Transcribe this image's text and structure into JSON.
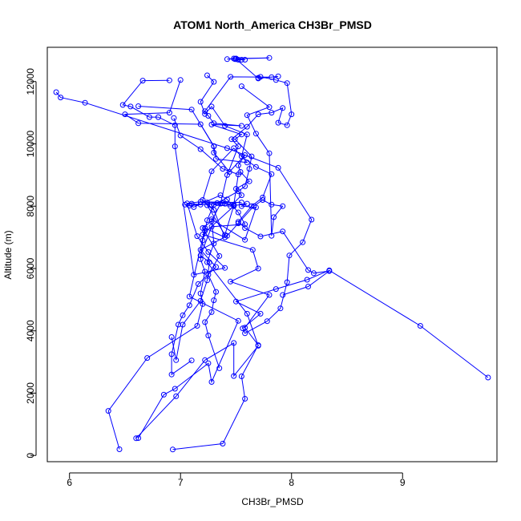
{
  "chart_data": {
    "type": "line",
    "title": "ATOM1 North_America CH3Br_PMSD",
    "xlabel": "CH3Br_PMSD",
    "ylabel": "Altitude (m)",
    "xlim": [
      5.8,
      9.85
    ],
    "ylim": [
      -200,
      13100
    ],
    "xticks": [
      6,
      7,
      8,
      9
    ],
    "xtick_labels": [
      "6",
      "7",
      "8",
      "9"
    ],
    "yticks": [
      0,
      2000,
      4000,
      6000,
      8000,
      10000,
      12000
    ],
    "ytick_labels": [
      "0",
      "2000",
      "4000",
      "6000",
      "8000",
      "10000",
      "12000"
    ],
    "grid": false,
    "legend": "none",
    "color": "#0000ff",
    "series": [
      {
        "x": [
          6.93,
          7.38,
          7.58,
          7.55,
          7.7,
          7.58,
          7.8,
          7.45,
          7.7,
          7.65,
          7.2,
          7.48,
          7.4,
          7.33,
          7.52,
          7.58,
          7.62,
          7.64,
          7.49,
          7.55,
          7.28,
          7.55,
          7.3,
          7.25,
          7.22,
          7.45,
          7.82,
          7.88,
          7.7,
          7.5,
          7.52,
          7.55,
          7.48,
          7.42,
          7.8,
          7.5,
          7.58,
          7.49
        ],
        "y": [
          190,
          380,
          1820,
          2540,
          3540,
          4100,
          5150,
          5580,
          6000,
          6600,
          7090,
          8000,
          8080,
          8100,
          8480,
          8640,
          9200,
          9600,
          10150,
          10300,
          10620,
          10580,
          10660,
          10900,
          11050,
          12150,
          12140,
          12170,
          12100,
          12720,
          12700,
          12700,
          12740,
          12720,
          12760,
          12740,
          12700,
          12720
        ]
      },
      {
        "x": [
          6.45,
          6.35,
          6.7,
          7.15,
          7.2,
          7.18,
          7.22,
          7.18,
          7.2,
          7.22,
          7.24,
          7.3,
          7.45,
          7.55,
          7.5,
          7.62,
          7.54,
          7.52,
          7.58,
          7.44,
          7.3,
          7.3,
          7.18,
          6.62,
          6.5,
          6.9,
          7.0
        ],
        "y": [
          200,
          1430,
          3130,
          4160,
          4860,
          5200,
          5900,
          6300,
          6900,
          7210,
          7550,
          8050,
          8000,
          8350,
          8560,
          8800,
          9100,
          9310,
          9640,
          9100,
          9720,
          9930,
          10630,
          10660,
          10950,
          11000,
          12050
        ]
      },
      {
        "x": [
          6.6,
          6.96,
          7.22,
          7.48,
          7.48,
          7.7,
          7.6,
          7.24,
          7.3,
          7.28,
          7.58,
          7.68,
          7.55,
          7.6,
          7.48,
          7.4,
          7.24,
          7.3,
          7.2,
          7.28,
          7.48,
          7.6,
          7.32,
          7.3,
          7.1,
          6.62
        ],
        "y": [
          550,
          1900,
          3060,
          3610,
          2550,
          3520,
          4550,
          6200,
          6800,
          7580,
          6920,
          7960,
          8000,
          8080,
          8020,
          7080,
          8030,
          7880,
          8200,
          9120,
          9860,
          9400,
          9520,
          9920,
          11100,
          11210
        ]
      },
      {
        "x": [
          6.62,
          6.85,
          6.95,
          7.25,
          7.28,
          7.52,
          7.08,
          7.22,
          7.4,
          7.28,
          7.24,
          7.55,
          7.18,
          7.06,
          7.15,
          7.25,
          7.4,
          7.12,
          6.95,
          6.95,
          6.8,
          6.72,
          6.55,
          6.48,
          6.66,
          6.9
        ],
        "y": [
          560,
          1950,
          2140,
          2960,
          2360,
          4320,
          5100,
          7300,
          7000,
          8050,
          8120,
          8120,
          8140,
          8090,
          7040,
          6530,
          6020,
          5800,
          9920,
          10600,
          10860,
          10860,
          11200,
          11250,
          12030,
          12040
        ]
      },
      {
        "x": [
          6.92,
          6.96,
          7.02,
          7.18,
          7.24,
          7.26,
          7.18,
          7.28,
          7.58,
          7.52,
          7.42,
          7.36,
          7.12,
          7.04,
          7.1,
          7.18,
          7.08,
          7.38,
          7.48,
          7.52,
          7.38,
          7.18,
          7.0,
          6.94
        ],
        "y": [
          3800,
          3060,
          4200,
          4960,
          5620,
          6200,
          6420,
          7340,
          7420,
          7800,
          8220,
          8350,
          7970,
          8050,
          8080,
          8050,
          8020,
          8100,
          8050,
          9020,
          9200,
          9830,
          10270,
          10830
        ]
      },
      {
        "x": [
          7.35,
          7.25,
          7.22,
          7.28,
          7.3,
          7.32,
          7.25,
          7.35,
          7.2,
          7.28,
          7.36,
          7.42,
          7.52,
          7.46,
          7.6,
          7.7,
          7.82,
          7.92,
          7.88,
          7.96,
          8.0,
          7.96,
          7.86,
          7.72,
          7.7
        ],
        "y": [
          2800,
          3850,
          4280,
          4600,
          4980,
          5250,
          5800,
          6400,
          7300,
          7520,
          8080,
          9000,
          9920,
          10150,
          10550,
          10950,
          11000,
          11150,
          10680,
          10600,
          10950,
          11950,
          12050,
          12150,
          12120
        ]
      },
      {
        "x": [
          7.1,
          6.92,
          6.92,
          6.98,
          7.02,
          7.08,
          7.16,
          7.32,
          7.18,
          7.42,
          7.52,
          7.66,
          7.74,
          7.82,
          7.92,
          7.84,
          7.82,
          7.8,
          7.68,
          7.6,
          7.8,
          7.55
        ],
        "y": [
          3050,
          2600,
          3250,
          4200,
          4500,
          4820,
          5500,
          6050,
          6600,
          7050,
          7450,
          8000,
          8200,
          8050,
          8000,
          7650,
          7050,
          9700,
          10330,
          10920,
          11180,
          11850
        ]
      },
      {
        "x": [
          7.92,
          8.15,
          8.34,
          8.2,
          8.15,
          7.92,
          7.72,
          7.58,
          7.52,
          7.64,
          7.74,
          7.82,
          7.68,
          7.55,
          7.6,
          7.4,
          7.28,
          7.22,
          7.18,
          7.3,
          7.24
        ],
        "y": [
          5150,
          5420,
          5920,
          5850,
          5950,
          7190,
          7030,
          7300,
          7500,
          8000,
          8280,
          9030,
          9260,
          9600,
          10300,
          10580,
          11200,
          10960,
          11350,
          11990,
          12200
        ]
      },
      {
        "x": [
          9.77,
          9.16,
          8.34,
          8.14,
          7.86,
          7.5,
          7.72,
          7.56,
          7.58,
          7.78,
          7.9,
          7.96,
          7.98,
          8.1,
          8.18,
          7.88,
          7.42,
          6.14,
          5.92,
          5.88
        ],
        "y": [
          2500,
          4160,
          5940,
          5640,
          5340,
          4940,
          4550,
          4080,
          3920,
          4310,
          4720,
          5560,
          6420,
          6840,
          7570,
          9230,
          9860,
          11320,
          11490,
          11660
        ]
      }
    ]
  }
}
